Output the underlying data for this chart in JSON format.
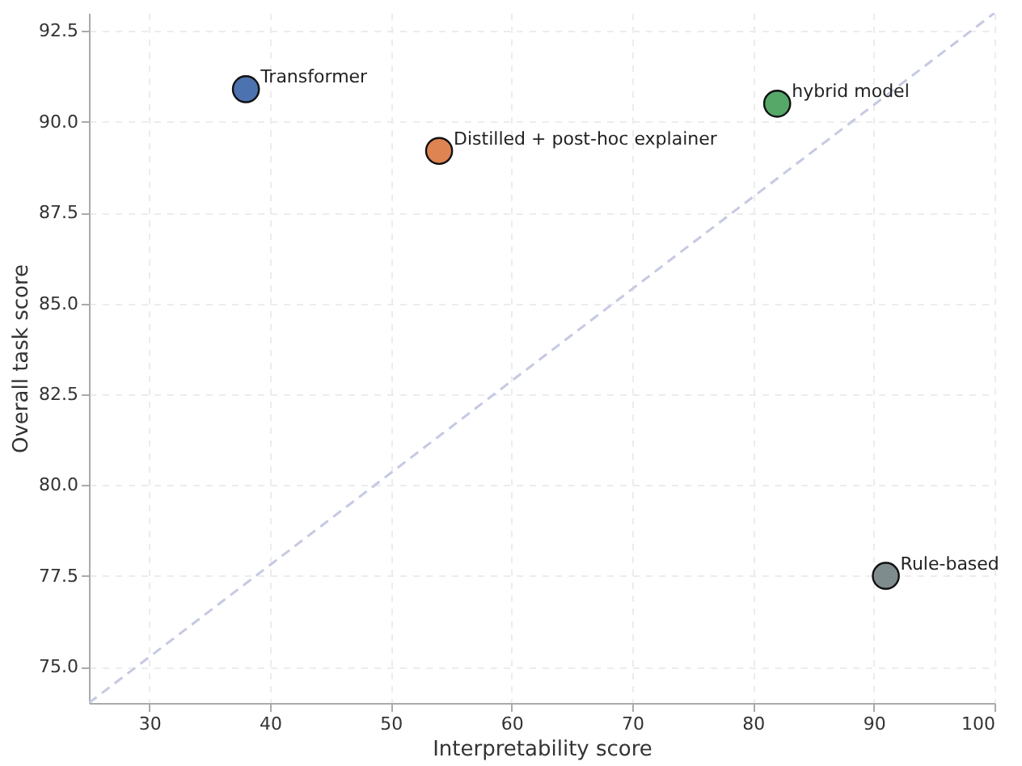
{
  "chart_data": {
    "type": "scatter",
    "xlabel": "Interpretability score",
    "ylabel": "Overall task score",
    "xlim": [
      25,
      100
    ],
    "ylim": [
      74,
      93
    ],
    "xticks": [
      30,
      40,
      50,
      60,
      70,
      80,
      90,
      100
    ],
    "yticks": [
      {
        "value": 75,
        "label": "75.0"
      },
      {
        "value": 77.5,
        "label": "77.5"
      },
      {
        "value": 80,
        "label": "80.0"
      },
      {
        "value": 82.5,
        "label": "82.5"
      },
      {
        "value": 85,
        "label": "85.0"
      },
      {
        "value": 87.5,
        "label": "87.5"
      },
      {
        "value": 90,
        "label": "90.0"
      },
      {
        "value": 92.5,
        "label": "92.5"
      }
    ],
    "grid": true,
    "marker": "circle",
    "series": [
      {
        "type": "line",
        "color": "#c5c9e3",
        "line_style": "dashed",
        "marker": "none",
        "x": [
          25,
          100
        ],
        "values": [
          74,
          93
        ]
      },
      {
        "name": "Transformer",
        "color": "#4c72b0",
        "x": [
          38
        ],
        "values": [
          90.9
        ]
      },
      {
        "name": "Distilled + post-hoc explainer",
        "color": "#dd8452",
        "x": [
          54
        ],
        "values": [
          89.2
        ]
      },
      {
        "name": "hybrid model",
        "color": "#55a868",
        "x": [
          82
        ],
        "values": [
          90.5
        ]
      },
      {
        "name": "Rule-based",
        "color": "#7f8c8d",
        "x": [
          91
        ],
        "values": [
          77.5
        ]
      }
    ]
  }
}
